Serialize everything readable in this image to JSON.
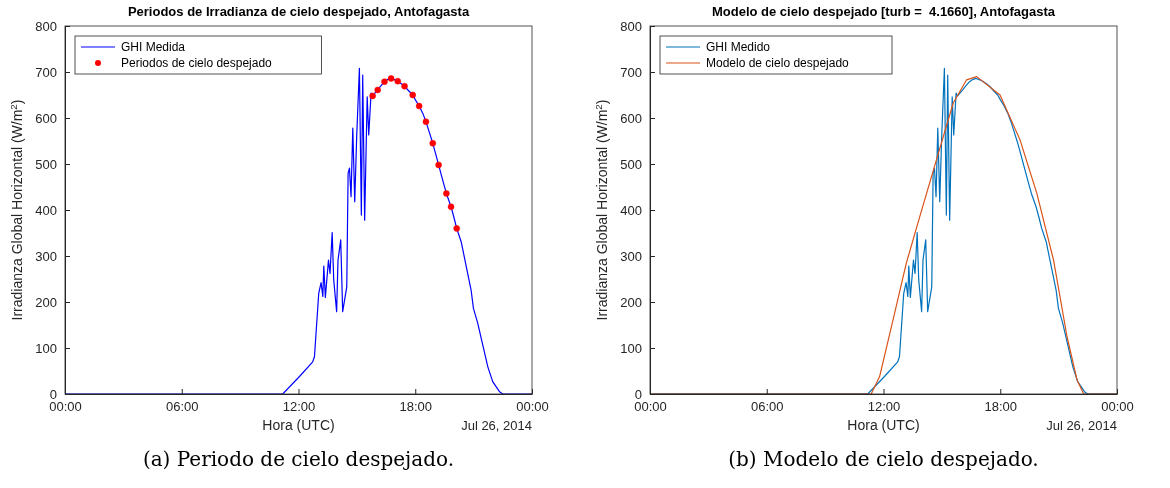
{
  "chart_data": [
    {
      "type": "line",
      "title": "Periodos de Irradianza de cielo despejado, Antofagasta",
      "xlabel": "Hora (UTC)",
      "ylabel": "Irradianza Global Horizontal (W/m$^{2}$)",
      "xlim": [
        0,
        24
      ],
      "xticks": [
        {
          "value": 0,
          "label": "00:00"
        },
        {
          "value": 6,
          "label": "06:00"
        },
        {
          "value": 12,
          "label": "12:00"
        },
        {
          "value": 18,
          "label": "18:00"
        },
        {
          "value": 24,
          "label": "00:00"
        }
      ],
      "ylim": [
        0,
        800
      ],
      "yticks": [
        0,
        100,
        200,
        300,
        400,
        500,
        600,
        700,
        800
      ],
      "grid": false,
      "legend": "top left",
      "annotations": [
        "Jul 26, 2014",
        "(a) Periodo de cielo despejado."
      ],
      "series": [
        {
          "name": "GHI Medida",
          "type": "line",
          "color": "#0000ff",
          "line_style": "solid",
          "x": [
            0,
            11.19,
            12.05,
            12.73,
            12.82,
            13.04,
            13.16,
            13.25,
            13.3,
            13.38,
            13.54,
            13.62,
            13.73,
            13.81,
            13.96,
            14.03,
            14.17,
            14.27,
            14.48,
            14.55,
            14.62,
            14.7,
            14.79,
            14.89,
            14.99,
            15.13,
            15.23,
            15.3,
            15.4,
            15.53,
            15.61,
            15.73,
            15.81,
            15.95,
            16.07,
            16.2,
            16.42,
            16.6,
            16.76,
            16.95,
            17.1,
            17.27,
            17.45,
            17.6,
            17.87,
            18,
            18.2,
            18.39,
            18.55,
            18.7,
            18.9,
            19.05,
            19.2,
            19.41,
            19.6,
            19.84,
            20,
            20.13,
            20.36,
            20.87,
            20.99,
            21.21,
            21.73,
            21.98,
            22.33,
            22.5,
            24
          ],
          "values": [
            0,
            0,
            38,
            70,
            81,
            219,
            242,
            212,
            278,
            210,
            291,
            262,
            351,
            248,
            179,
            291,
            335,
            179,
            233,
            480,
            491,
            429,
            578,
            418,
            559,
            708,
            389,
            693,
            378,
            646,
            563,
            654,
            648,
            655,
            661,
            668,
            679,
            684,
            686,
            683,
            680,
            675,
            669,
            662,
            650,
            640,
            626,
            610,
            592,
            572,
            545,
            522,
            498,
            465,
            436,
            407,
            382,
            360,
            331,
            226,
            186,
            154,
            59,
            27,
            5,
            0,
            0
          ]
        },
        {
          "name": "Periodos de cielo despejado",
          "type": "scatter",
          "color": "#ff0000",
          "marker": "circle",
          "x": [
            15.81,
            16.07,
            16.42,
            16.76,
            17.1,
            17.45,
            17.87,
            18.2,
            18.55,
            18.9,
            19.2,
            19.6,
            19.84,
            20.13
          ],
          "values": [
            648,
            661,
            679,
            686,
            680,
            669,
            650,
            626,
            592,
            545,
            498,
            436,
            407,
            360
          ]
        }
      ]
    },
    {
      "type": "line",
      "title": "Modelo de cielo despejado [turb =  4.1660], Antofagasta",
      "xlabel": "Hora (UTC)",
      "ylabel": "Irradianza Global Horizontal (W/m$^{2}$)",
      "xlim": [
        0,
        24
      ],
      "xticks": [
        {
          "value": 0,
          "label": "00:00"
        },
        {
          "value": 6,
          "label": "06:00"
        },
        {
          "value": 12,
          "label": "12:00"
        },
        {
          "value": 18,
          "label": "18:00"
        },
        {
          "value": 24,
          "label": "00:00"
        }
      ],
      "ylim": [
        0,
        800
      ],
      "yticks": [
        0,
        100,
        200,
        300,
        400,
        500,
        600,
        700,
        800
      ],
      "grid": false,
      "legend": "top left",
      "annotations": [
        "Jul 26, 2014",
        "(b) Modelo de cielo despejado."
      ],
      "series": [
        {
          "name": "GHI Medido",
          "type": "line",
          "color": "#0072bd",
          "line_style": "solid",
          "x": [
            0,
            11.19,
            12.05,
            12.73,
            12.82,
            13.04,
            13.16,
            13.25,
            13.3,
            13.38,
            13.54,
            13.62,
            13.73,
            13.81,
            13.96,
            14.03,
            14.17,
            14.27,
            14.48,
            14.55,
            14.62,
            14.7,
            14.79,
            14.89,
            14.99,
            15.13,
            15.23,
            15.3,
            15.4,
            15.53,
            15.61,
            15.73,
            15.81,
            15.95,
            16.07,
            16.2,
            16.42,
            16.6,
            16.76,
            16.95,
            17.1,
            17.27,
            17.45,
            17.6,
            17.87,
            18,
            18.2,
            18.39,
            18.55,
            18.7,
            18.9,
            19.05,
            19.2,
            19.41,
            19.6,
            19.84,
            20,
            20.13,
            20.36,
            20.87,
            20.99,
            21.21,
            21.73,
            21.98,
            22.33,
            22.5,
            24
          ],
          "values": [
            0,
            0,
            38,
            70,
            81,
            219,
            242,
            212,
            278,
            210,
            291,
            262,
            351,
            248,
            179,
            291,
            335,
            179,
            233,
            480,
            491,
            429,
            578,
            418,
            559,
            708,
            389,
            693,
            378,
            646,
            563,
            654,
            648,
            655,
            661,
            668,
            679,
            684,
            686,
            683,
            680,
            675,
            669,
            662,
            650,
            640,
            626,
            610,
            592,
            572,
            545,
            522,
            498,
            465,
            436,
            407,
            382,
            360,
            331,
            226,
            186,
            154,
            59,
            27,
            5,
            0,
            0
          ]
        },
        {
          "name": "Modelo de cielo despejado",
          "type": "line",
          "color": "#d95319",
          "line_style": "solid",
          "x": [
            0,
            11.37,
            11.8,
            12.49,
            13.17,
            13.86,
            14.72,
            15.58,
            16.27,
            16.79,
            17.99,
            19.02,
            19.88,
            20.74,
            21.43,
            21.95,
            22.29,
            24
          ],
          "values": [
            0,
            0,
            38,
            161,
            284,
            385,
            509,
            632,
            683,
            690,
            650,
            552,
            436,
            291,
            125,
            30,
            0,
            0
          ]
        }
      ]
    }
  ]
}
